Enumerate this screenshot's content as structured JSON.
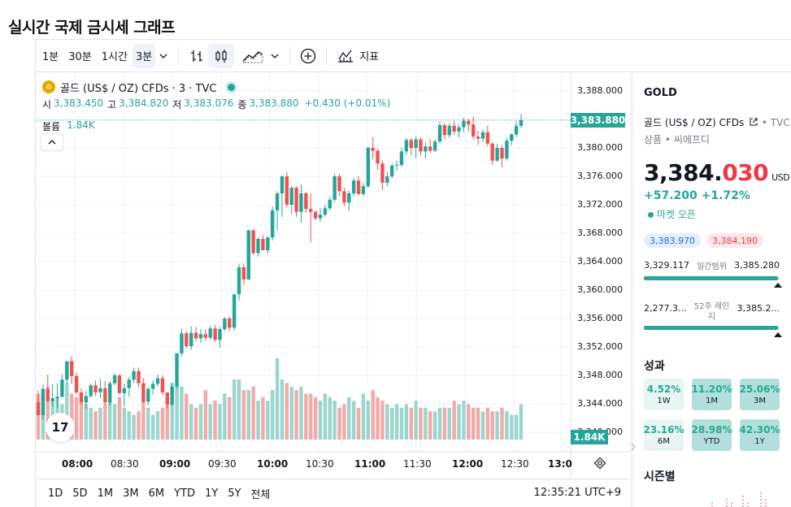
{
  "page": {
    "title": "실시간 국제 금시세 그래프"
  },
  "toolbar": {
    "intervals": [
      "1분",
      "30분",
      "1시간",
      "3분"
    ],
    "active_interval": "3분",
    "indicators_label": "지표"
  },
  "legend": {
    "symbol_line": "골드 (US$ / OZ) CFDs · 3 · TVC",
    "open_label": "시",
    "open": "3,383.450",
    "high_label": "고",
    "high": "3,384.820",
    "low_label": "저",
    "low": "3,383.076",
    "close_label": "종",
    "close": "3,383.880",
    "change": "+0.430 (+0.01%)",
    "volume_label": "볼륨",
    "volume": "1.84K"
  },
  "price_axis": {
    "ticks": [
      "3,388.000",
      "3,384.000",
      "3,380.000",
      "3,376.000",
      "3,372.000",
      "3,368.000",
      "3,364.000",
      "3,360.000",
      "3,356.000",
      "3,352.000",
      "3,348.000",
      "3,344.000",
      "3,340.000"
    ],
    "current_price_label": "3,383.880",
    "volume_tag": "1.84K"
  },
  "time_axis": {
    "ticks": [
      {
        "label": "08:00",
        "bold": true
      },
      {
        "label": "08:30",
        "bold": false
      },
      {
        "label": "09:00",
        "bold": true
      },
      {
        "label": "09:30",
        "bold": false
      },
      {
        "label": "10:00",
        "bold": true
      },
      {
        "label": "10:30",
        "bold": false
      },
      {
        "label": "11:00",
        "bold": true
      },
      {
        "label": "11:30",
        "bold": false
      },
      {
        "label": "12:00",
        "bold": true
      },
      {
        "label": "12:30",
        "bold": false
      },
      {
        "label": "13:0",
        "bold": true
      }
    ]
  },
  "bottom_bar": {
    "ranges": [
      "1D",
      "5D",
      "1M",
      "3M",
      "6M",
      "YTD",
      "1Y",
      "5Y",
      "전체"
    ],
    "clock": "12:35:21 UTC+9"
  },
  "panel": {
    "symbol": "GOLD",
    "name": "골드 (US$ / OZ) CFDs",
    "exchange": "• TVC",
    "type": "상품 • 씨에프디",
    "price_main": "3,384.",
    "price_frac": "030",
    "currency": "USD",
    "change": "+57.200  +1.72%",
    "market_status": "마켓 오픈",
    "bid": "3,383.970",
    "ask": "3,384.190",
    "day_range": {
      "low": "3,329.117",
      "label": "일간범위",
      "high": "3,385.280",
      "position": 0.99
    },
    "year_range": {
      "low": "2,277.3...",
      "label": "52주 레인지",
      "high": "3,385.2...",
      "position": 0.99
    },
    "performance_title": "성과",
    "performance": [
      {
        "value": "4.52%",
        "label": "1W",
        "strong": false
      },
      {
        "value": "11.20%",
        "label": "1M",
        "strong": true
      },
      {
        "value": "25.06%",
        "label": "3M",
        "strong": true
      },
      {
        "value": "23.16%",
        "label": "6M",
        "strong": false
      },
      {
        "value": "28.98%",
        "label": "YTD",
        "strong": true
      },
      {
        "value": "42.30%",
        "label": "1Y",
        "strong": true
      }
    ],
    "seasonals_title": "시즌별"
  },
  "colors": {
    "up": "#26a69a",
    "down": "#ef5350",
    "vol_up": "#9ad6cd",
    "vol_down": "#f5a9a7"
  },
  "chart_data": {
    "type": "candlestick",
    "title": "골드 (US$ / OZ) CFDs · 3 · TVC",
    "interval": "3분",
    "ylim": [
      3339,
      3389
    ],
    "candles": [
      [
        3344.2,
        3345.9,
        3342.4,
        3342.4,
        1.3
      ],
      [
        3342.4,
        3346.7,
        3341.8,
        3346.1,
        1.2
      ],
      [
        3346.1,
        3348.1,
        3344.2,
        3344.4,
        1.5
      ],
      [
        3344.4,
        3346.7,
        3343.6,
        3344.8,
        1.1
      ],
      [
        3344.8,
        3346.9,
        3343.4,
        3345.0,
        1.2
      ],
      [
        3345.0,
        3348.1,
        3344.9,
        3347.4,
        1.0
      ],
      [
        3347.4,
        3350.0,
        3346.8,
        3350.0,
        1.6
      ],
      [
        3350.0,
        3350.7,
        3346.8,
        3347.9,
        1.3
      ],
      [
        3347.9,
        3348.4,
        3345.4,
        3345.6,
        1.2
      ],
      [
        3345.6,
        3346.2,
        3343.9,
        3344.2,
        1.1
      ],
      [
        3344.2,
        3345.8,
        3343.3,
        3345.1,
        1.0
      ],
      [
        3345.1,
        3346.8,
        3344.8,
        3346.6,
        0.9
      ],
      [
        3346.6,
        3347.3,
        3345.1,
        3345.6,
        0.8
      ],
      [
        3345.6,
        3347.5,
        3344.8,
        3346.2,
        0.9
      ],
      [
        3346.2,
        3347.2,
        3343.8,
        3344.2,
        1.0
      ],
      [
        3344.2,
        3347.2,
        3343.7,
        3346.9,
        1.1
      ],
      [
        3346.9,
        3348.3,
        3346.6,
        3348.0,
        1.0
      ],
      [
        3348.0,
        3348.2,
        3345.4,
        3345.5,
        1.2
      ],
      [
        3345.5,
        3346.8,
        3343.6,
        3346.2,
        0.9
      ],
      [
        3346.2,
        3347.8,
        3345.0,
        3347.4,
        0.8
      ],
      [
        3347.4,
        3349.1,
        3346.9,
        3348.6,
        0.7
      ],
      [
        3348.6,
        3349.1,
        3346.4,
        3346.9,
        0.8
      ],
      [
        3346.9,
        3347.6,
        3344.1,
        3344.3,
        1.1
      ],
      [
        3344.3,
        3346.4,
        3343.8,
        3346.1,
        0.9
      ],
      [
        3346.1,
        3347.3,
        3345.3,
        3346.8,
        0.7
      ],
      [
        3346.8,
        3348.1,
        3346.4,
        3347.6,
        0.8
      ],
      [
        3347.6,
        3348.0,
        3345.2,
        3345.6,
        0.9
      ],
      [
        3345.6,
        3345.6,
        3343.3,
        3343.9,
        1.0
      ],
      [
        3343.9,
        3346.9,
        3343.6,
        3346.4,
        1.6
      ],
      [
        3346.4,
        3351.1,
        3346.1,
        3351.1,
        1.7
      ],
      [
        3351.1,
        3354.6,
        3350.7,
        3353.9,
        1.5
      ],
      [
        3353.9,
        3354.2,
        3351.8,
        3352.1,
        1.3
      ],
      [
        3352.1,
        3354.9,
        3351.6,
        3354.0,
        1.0
      ],
      [
        3354.0,
        3354.8,
        3352.8,
        3353.2,
        0.9
      ],
      [
        3353.2,
        3354.5,
        3352.6,
        3353.8,
        1.0
      ],
      [
        3353.8,
        3354.5,
        3352.9,
        3353.3,
        1.4
      ],
      [
        3353.3,
        3355.0,
        3353.0,
        3354.6,
        1.0
      ],
      [
        3354.6,
        3355.1,
        3352.7,
        3353.0,
        1.1
      ],
      [
        3353.0,
        3354.8,
        3351.9,
        3354.5,
        1.0
      ],
      [
        3354.5,
        3356.2,
        3354.2,
        3356.0,
        1.3
      ],
      [
        3356.0,
        3356.3,
        3354.2,
        3354.7,
        1.2
      ],
      [
        3354.7,
        3359.4,
        3354.3,
        3359.4,
        1.7
      ],
      [
        3359.4,
        3363.7,
        3358.5,
        3363.2,
        1.7
      ],
      [
        3363.2,
        3363.7,
        3360.7,
        3361.5,
        1.4
      ],
      [
        3361.5,
        3368.5,
        3361.4,
        3368.4,
        1.4
      ],
      [
        3368.4,
        3368.6,
        3364.9,
        3365.2,
        1.5
      ],
      [
        3365.2,
        3367.4,
        3364.7,
        3367.2,
        1.1
      ],
      [
        3367.2,
        3367.8,
        3365.6,
        3365.6,
        1.2
      ],
      [
        3365.6,
        3367.6,
        3365.1,
        3367.4,
        1.1
      ],
      [
        3367.4,
        3371.7,
        3367.0,
        3371.2,
        1.4
      ],
      [
        3371.2,
        3373.9,
        3368.4,
        3373.6,
        2.3
      ],
      [
        3373.6,
        3376.1,
        3370.3,
        3376.0,
        1.7
      ],
      [
        3376.0,
        3376.6,
        3371.6,
        3372.0,
        1.6
      ],
      [
        3372.0,
        3374.7,
        3370.7,
        3374.4,
        1.5
      ],
      [
        3374.4,
        3374.6,
        3370.3,
        3371.0,
        1.4
      ],
      [
        3371.0,
        3374.9,
        3369.5,
        3373.6,
        1.5
      ],
      [
        3373.6,
        3373.8,
        3370.9,
        3371.4,
        1.3
      ],
      [
        3371.4,
        3373.6,
        3366.7,
        3371.0,
        1.3
      ],
      [
        3371.0,
        3371.2,
        3369.8,
        3370.1,
        1.2
      ],
      [
        3370.1,
        3371.5,
        3369.6,
        3370.6,
        1.1
      ],
      [
        3370.6,
        3372.0,
        3370.3,
        3371.5,
        1.3
      ],
      [
        3371.5,
        3373.1,
        3371.2,
        3372.7,
        1.2
      ],
      [
        3372.7,
        3376.3,
        3372.4,
        3376.0,
        1.1
      ],
      [
        3376.0,
        3376.3,
        3373.2,
        3373.9,
        0.9
      ],
      [
        3373.9,
        3374.4,
        3371.8,
        3372.3,
        1.0
      ],
      [
        3372.3,
        3374.0,
        3371.1,
        3373.6,
        1.2
      ],
      [
        3373.6,
        3375.8,
        3373.2,
        3375.4,
        1.1
      ],
      [
        3375.4,
        3376.0,
        3373.4,
        3373.5,
        0.9
      ],
      [
        3373.5,
        3375.1,
        3373.2,
        3374.6,
        1.3
      ],
      [
        3374.6,
        3380.2,
        3374.4,
        3380.0,
        1.1
      ],
      [
        3380.0,
        3381.5,
        3378.4,
        3379.6,
        1.4
      ],
      [
        3379.6,
        3379.9,
        3376.9,
        3377.8,
        1.2
      ],
      [
        3377.8,
        3378.2,
        3374.0,
        3375.1,
        1.1
      ],
      [
        3375.1,
        3376.6,
        3374.6,
        3376.0,
        1.0
      ],
      [
        3376.0,
        3377.8,
        3375.7,
        3377.5,
        0.9
      ],
      [
        3377.5,
        3378.2,
        3376.8,
        3377.6,
        1.0
      ],
      [
        3377.6,
        3380.0,
        3377.3,
        3379.5,
        0.9
      ],
      [
        3379.5,
        3381.4,
        3379.0,
        3381.1,
        1.0
      ],
      [
        3381.1,
        3381.4,
        3378.9,
        3380.0,
        0.9
      ],
      [
        3380.0,
        3381.6,
        3378.5,
        3381.2,
        1.1
      ],
      [
        3381.2,
        3381.5,
        3378.9,
        3379.5,
        0.9
      ],
      [
        3379.5,
        3380.7,
        3378.5,
        3380.2,
        0.9
      ],
      [
        3380.2,
        3381.2,
        3379.3,
        3379.6,
        0.8
      ],
      [
        3379.6,
        3381.2,
        3379.4,
        3380.9,
        0.8
      ],
      [
        3380.9,
        3383.7,
        3380.6,
        3383.2,
        0.9
      ],
      [
        3383.2,
        3383.5,
        3381.2,
        3381.8,
        0.9
      ],
      [
        3381.8,
        3383.5,
        3381.4,
        3383.1,
        0.9
      ],
      [
        3383.1,
        3383.8,
        3381.9,
        3382.3,
        1.1
      ],
      [
        3382.3,
        3383.3,
        3381.5,
        3382.9,
        1.0
      ],
      [
        3382.9,
        3384.2,
        3382.2,
        3383.8,
        1.1
      ],
      [
        3383.8,
        3384.1,
        3382.3,
        3383.3,
        1.0
      ],
      [
        3383.3,
        3384.4,
        3381.2,
        3381.6,
        0.9
      ],
      [
        3381.6,
        3382.4,
        3380.4,
        3381.3,
        0.9
      ],
      [
        3381.3,
        3382.6,
        3380.8,
        3382.2,
        0.8
      ],
      [
        3382.2,
        3383.1,
        3380.2,
        3380.6,
        0.9
      ],
      [
        3380.6,
        3380.8,
        3377.6,
        3378.2,
        0.8
      ],
      [
        3378.2,
        3380.6,
        3378.0,
        3380.0,
        0.8
      ],
      [
        3380.0,
        3380.4,
        3377.3,
        3378.5,
        0.9
      ],
      [
        3378.5,
        3381.4,
        3378.2,
        3381.0,
        0.8
      ],
      [
        3381.0,
        3382.1,
        3380.4,
        3381.9,
        0.7
      ],
      [
        3381.9,
        3383.7,
        3381.5,
        3383.1,
        0.7
      ],
      [
        3383.1,
        3384.8,
        3382.8,
        3383.9,
        1.0
      ]
    ]
  }
}
